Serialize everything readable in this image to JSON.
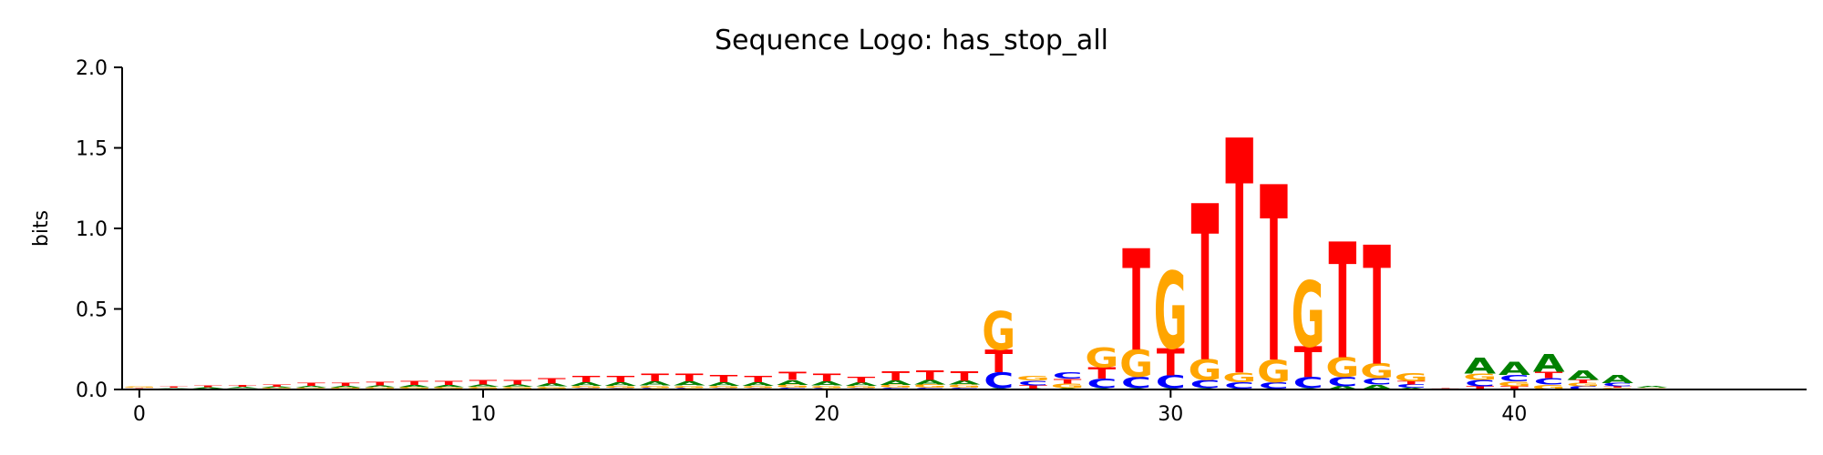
{
  "chart_data": {
    "type": "sequence-logo",
    "title": "Sequence Logo: has_stop_all",
    "ylabel": "bits",
    "xlabel": "",
    "ylim": [
      0,
      2.0
    ],
    "xlim": [
      -0.5,
      48.5
    ],
    "yticks": [
      0.0,
      0.5,
      1.0,
      1.5,
      2.0
    ],
    "ytick_labels": [
      "0.0",
      "0.5",
      "1.0",
      "1.5",
      "2.0"
    ],
    "xticks": [
      0,
      10,
      20,
      30,
      40
    ],
    "xtick_labels": [
      "0",
      "10",
      "20",
      "30",
      "40"
    ],
    "grid": false,
    "colors": {
      "A": "#008000",
      "C": "#0000ff",
      "G": "#ffa500",
      "T": "#ff0000"
    },
    "positions": [
      {
        "pos": 0,
        "A": 0.004,
        "C": 0.003,
        "G": 0.008,
        "T": 0.005
      },
      {
        "pos": 1,
        "A": 0.005,
        "C": 0.003,
        "G": 0.004,
        "T": 0.006
      },
      {
        "pos": 2,
        "A": 0.006,
        "C": 0.003,
        "G": 0.004,
        "T": 0.01
      },
      {
        "pos": 3,
        "A": 0.007,
        "C": 0.004,
        "G": 0.005,
        "T": 0.012
      },
      {
        "pos": 4,
        "A": 0.008,
        "C": 0.004,
        "G": 0.006,
        "T": 0.014
      },
      {
        "pos": 5,
        "A": 0.01,
        "C": 0.004,
        "G": 0.008,
        "T": 0.018
      },
      {
        "pos": 6,
        "A": 0.01,
        "C": 0.005,
        "G": 0.007,
        "T": 0.018
      },
      {
        "pos": 7,
        "A": 0.012,
        "C": 0.005,
        "G": 0.008,
        "T": 0.022
      },
      {
        "pos": 8,
        "A": 0.014,
        "C": 0.005,
        "G": 0.01,
        "T": 0.026
      },
      {
        "pos": 9,
        "A": 0.014,
        "C": 0.006,
        "G": 0.009,
        "T": 0.024
      },
      {
        "pos": 10,
        "A": 0.016,
        "C": 0.006,
        "G": 0.01,
        "T": 0.028
      },
      {
        "pos": 11,
        "A": 0.016,
        "C": 0.006,
        "G": 0.01,
        "T": 0.028
      },
      {
        "pos": 12,
        "A": 0.018,
        "C": 0.007,
        "G": 0.012,
        "T": 0.034
      },
      {
        "pos": 13,
        "A": 0.022,
        "C": 0.008,
        "G": 0.014,
        "T": 0.04
      },
      {
        "pos": 14,
        "A": 0.022,
        "C": 0.008,
        "G": 0.014,
        "T": 0.04
      },
      {
        "pos": 15,
        "A": 0.026,
        "C": 0.009,
        "G": 0.016,
        "T": 0.048
      },
      {
        "pos": 16,
        "A": 0.025,
        "C": 0.009,
        "G": 0.016,
        "T": 0.046
      },
      {
        "pos": 17,
        "A": 0.022,
        "C": 0.008,
        "G": 0.014,
        "T": 0.042
      },
      {
        "pos": 18,
        "A": 0.022,
        "C": 0.008,
        "G": 0.014,
        "T": 0.04
      },
      {
        "pos": 19,
        "A": 0.03,
        "C": 0.01,
        "G": 0.018,
        "T": 0.052
      },
      {
        "pos": 20,
        "A": 0.025,
        "C": 0.009,
        "G": 0.016,
        "T": 0.046
      },
      {
        "pos": 21,
        "A": 0.02,
        "C": 0.008,
        "G": 0.014,
        "T": 0.038
      },
      {
        "pos": 22,
        "A": 0.028,
        "C": 0.01,
        "G": 0.018,
        "T": 0.054
      },
      {
        "pos": 23,
        "A": 0.03,
        "C": 0.01,
        "G": 0.02,
        "T": 0.058
      },
      {
        "pos": 24,
        "A": 0.025,
        "C": 0.012,
        "G": 0.018,
        "T": 0.06
      },
      {
        "pos": 25,
        "A": 0.008,
        "C": 0.1,
        "G": 0.24,
        "T": 0.14
      },
      {
        "pos": 26,
        "A": 0.006,
        "C": 0.03,
        "G": 0.03,
        "T": 0.02
      },
      {
        "pos": 27,
        "A": 0.008,
        "C": 0.04,
        "G": 0.03,
        "T": 0.03
      },
      {
        "pos": 28,
        "A": 0.008,
        "C": 0.06,
        "G": 0.12,
        "T": 0.07
      },
      {
        "pos": 29,
        "A": 0.008,
        "C": 0.07,
        "G": 0.17,
        "T": 0.63
      },
      {
        "pos": 30,
        "A": 0.008,
        "C": 0.08,
        "G": 0.48,
        "T": 0.17
      },
      {
        "pos": 31,
        "A": 0.008,
        "C": 0.05,
        "G": 0.13,
        "T": 0.97
      },
      {
        "pos": 32,
        "A": 0.006,
        "C": 0.04,
        "G": 0.06,
        "T": 1.46
      },
      {
        "pos": 33,
        "A": 0.006,
        "C": 0.04,
        "G": 0.14,
        "T": 1.09
      },
      {
        "pos": 34,
        "A": 0.008,
        "C": 0.07,
        "G": 0.41,
        "T": 0.19
      },
      {
        "pos": 35,
        "A": 0.02,
        "C": 0.06,
        "G": 0.12,
        "T": 0.72
      },
      {
        "pos": 36,
        "A": 0.03,
        "C": 0.04,
        "G": 0.09,
        "T": 0.74
      },
      {
        "pos": 37,
        "A": 0.01,
        "C": 0.02,
        "G": 0.05,
        "T": 0.02
      },
      {
        "pos": 38,
        "A": 0.002,
        "C": 0.002,
        "G": 0.002,
        "T": 0.002
      },
      {
        "pos": 39,
        "A": 0.1,
        "C": 0.04,
        "G": 0.04,
        "T": 0.02
      },
      {
        "pos": 40,
        "A": 0.08,
        "C": 0.04,
        "G": 0.03,
        "T": 0.02
      },
      {
        "pos": 41,
        "A": 0.11,
        "C": 0.04,
        "G": 0.03,
        "T": 0.04
      },
      {
        "pos": 42,
        "A": 0.06,
        "C": 0.02,
        "G": 0.02,
        "T": 0.02
      },
      {
        "pos": 43,
        "A": 0.05,
        "C": 0.02,
        "G": 0.01,
        "T": 0.01
      },
      {
        "pos": 44,
        "A": 0.01,
        "C": 0.004,
        "G": 0.004,
        "T": 0.002
      },
      {
        "pos": 45,
        "A": 0.002,
        "C": 0.001,
        "G": 0.001,
        "T": 0.001
      },
      {
        "pos": 46,
        "A": 0.002,
        "C": 0.001,
        "G": 0.001,
        "T": 0.001
      },
      {
        "pos": 47,
        "A": 0.002,
        "C": 0.001,
        "G": 0.001,
        "T": 0.002
      },
      {
        "pos": 48,
        "A": 0.002,
        "C": 0.001,
        "G": 0.001,
        "T": 0.004
      }
    ]
  }
}
